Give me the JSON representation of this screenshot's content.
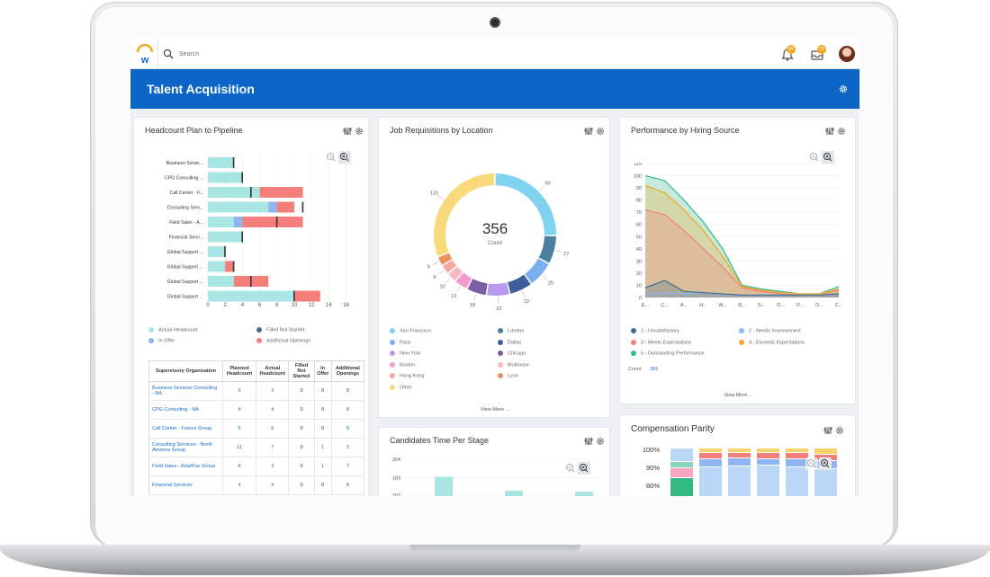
{
  "topbar": {
    "search_placeholder": "Search",
    "notifications_badge": "99",
    "inbox_badge": "23"
  },
  "header": {
    "title": "Talent Acquisition"
  },
  "headcount": {
    "title": "Headcount Plan to Pipeline",
    "y_categories": [
      "Business Servic...",
      "CPG Consulting ...",
      "Call Center - F...",
      "Consulting Serv...",
      "Field Sales - A...",
      "Financial Servi...",
      "Global Support ...",
      "Global Support ...",
      "Global Support ...",
      "Global Support ..."
    ],
    "x_ticks": [
      "0",
      "2",
      "4",
      "6",
      "8",
      "10",
      "12",
      "14",
      "16"
    ],
    "legend": [
      "Actual Headcount",
      "Filled Not Started",
      "In Offer",
      "Additional Openings"
    ],
    "table": {
      "headers": [
        "Supervisory Organization",
        "Planned Headcount",
        "Actual Headcount",
        "Filled Not Started",
        "In Offer",
        "Additional Openings"
      ],
      "rows": [
        [
          "Business Services Consulting - NA",
          "3",
          "3",
          "0",
          "0",
          "0"
        ],
        [
          "CPG Consulting - NA",
          "4",
          "4",
          "0",
          "0",
          "0"
        ],
        [
          "Call Center - France Group",
          "5",
          "6",
          "0",
          "0",
          "5"
        ],
        [
          "Consulting Services - North America Group",
          "11",
          "7",
          "0",
          "1",
          "2"
        ],
        [
          "Field Sales - Asia/Pac Group",
          "8",
          "3",
          "0",
          "1",
          "7"
        ],
        [
          "Financial Services",
          "4",
          "4",
          "0",
          "0",
          "0"
        ]
      ]
    }
  },
  "chart_data": [
    {
      "type": "bar",
      "title": "Headcount Plan to Pipeline",
      "orientation": "horizontal",
      "stacked": true,
      "categories": [
        "Business Servic...",
        "CPG Consulting ...",
        "Call Center - F...",
        "Consulting Serv...",
        "Field Sales - A...",
        "Financial Servi...",
        "Global Support ...",
        "Global Support ...",
        "Global Support ...",
        "Global Support ..."
      ],
      "xlim": [
        0,
        16
      ],
      "series": [
        {
          "name": "Actual Headcount",
          "values": [
            3,
            4,
            6,
            7,
            3,
            4,
            2,
            2,
            3,
            10
          ]
        },
        {
          "name": "Filled Not Started",
          "values": [
            0,
            0,
            0,
            0,
            0,
            0,
            0,
            0,
            0,
            0
          ]
        },
        {
          "name": "In Offer",
          "values": [
            0,
            0,
            0,
            1,
            1,
            0,
            0,
            0,
            0,
            0
          ]
        },
        {
          "name": "Additional Openings",
          "values": [
            0,
            0,
            5,
            2,
            7,
            0,
            0,
            1,
            4,
            3
          ]
        }
      ],
      "planned_markers": [
        3,
        4,
        5,
        11,
        8,
        4,
        2,
        3,
        5,
        10
      ],
      "colors": [
        "#a8e6e3",
        "#3f6e8c",
        "#8fb4ef",
        "#f47f7a"
      ]
    },
    {
      "type": "pie",
      "title": "Job Requisitions by Location",
      "donut": true,
      "center_value": "356",
      "center_label": "Count",
      "labels": [
        "San Francisco",
        "London",
        "Paris",
        "Dallas",
        "New York",
        "Chicago",
        "Boston",
        "Mulhouse",
        "Hong Kong",
        "Lyon",
        "Other"
      ],
      "values": [
        90,
        27,
        25,
        22,
        22,
        19,
        13,
        10,
        9,
        9,
        110
      ],
      "colors": [
        "#7fd3ee",
        "#4a7f9e",
        "#7aaef2",
        "#3f5e9c",
        "#b79af0",
        "#7b5fa4",
        "#f49ad1",
        "#f9b8c2",
        "#f6a7a0",
        "#e99561",
        "#f9da7b"
      ]
    },
    {
      "type": "area",
      "title": "Performance by Hiring Source",
      "stacked": false,
      "ylim": [
        0,
        110
      ],
      "y_ticks": [
        "0",
        "10",
        "20",
        "30",
        "40",
        "50",
        "60",
        "70",
        "80",
        "90",
        "100",
        "110"
      ],
      "categories": [
        "E...",
        "C...",
        "A...",
        "H...",
        "W...",
        "R...",
        "S...",
        "D...",
        "P...",
        "O...",
        "C..."
      ],
      "series": [
        {
          "name": "1 - Unsatisfactory",
          "values": [
            8,
            14,
            5,
            4,
            3,
            2,
            2,
            2,
            2,
            2,
            3
          ]
        },
        {
          "name": "2 - Needs Improvement",
          "values": [
            3,
            4,
            3,
            4,
            3,
            2,
            2,
            2,
            2,
            2,
            3
          ]
        },
        {
          "name": "3 - Meets Expectations",
          "values": [
            72,
            68,
            55,
            40,
            25,
            8,
            5,
            3,
            2,
            2,
            6
          ]
        },
        {
          "name": "4 - Exceeds Expectations",
          "values": [
            92,
            86,
            72,
            55,
            34,
            9,
            6,
            4,
            3,
            3,
            7
          ]
        },
        {
          "name": "5 - Outstanding Performance",
          "values": [
            100,
            96,
            80,
            62,
            40,
            10,
            7,
            5,
            3,
            3,
            9
          ]
        }
      ],
      "colors": [
        "#3f6e8c",
        "#8fb4ef",
        "#f47f7a",
        "#f5a623",
        "#34b884"
      ],
      "count_label": "Count",
      "count_value": "381"
    },
    {
      "type": "bar",
      "title": "Candidates Time Per Stage",
      "y_ticks": [
        "204",
        "183",
        "163"
      ],
      "values": [
        184,
        168,
        167
      ]
    },
    {
      "type": "bar",
      "title": "Compensation Parity",
      "stacked": true,
      "y_ticks": [
        "100%",
        "90%",
        "80%"
      ]
    }
  ],
  "location_legend": {
    "left": [
      "San Francisco",
      "Paris",
      "New York",
      "Boston",
      "Hong Kong",
      "Other"
    ],
    "right": [
      "London",
      "Dallas",
      "Chicago",
      "Mulhouse",
      "Lyon"
    ],
    "left_colors": [
      "#7fd3ee",
      "#7aaef2",
      "#b79af0",
      "#f49ad1",
      "#f6a7a0",
      "#f9da7b"
    ],
    "right_colors": [
      "#4a7f9e",
      "#3f5e9c",
      "#7b5fa4",
      "#f9b8c2",
      "#e99561"
    ]
  },
  "donut_labels": [
    "90",
    "27",
    "25",
    "22",
    "22",
    "19",
    "13",
    "10",
    "9",
    "9",
    "110"
  ],
  "performance_legend": [
    {
      "label": "1 - Unsatisfactory",
      "color": "#3f6e8c"
    },
    {
      "label": "2 - Needs Improvement",
      "color": "#8fb4ef"
    },
    {
      "label": "3 - Meets Expectations",
      "color": "#f47f7a"
    },
    {
      "label": "4 - Exceeds Expectations",
      "color": "#f5a623"
    },
    {
      "label": "5 - Outstanding Performance",
      "color": "#34b884"
    }
  ],
  "cards": {
    "jobreq_title": "Job Requisitions by Location",
    "performance_title": "Performance by Hiring Source",
    "candidates_title": "Candidates Time Per Stage",
    "compensation_title": "Compensation Parity",
    "view_more": "View More ...",
    "count_label": "Count",
    "count_value": "381"
  }
}
